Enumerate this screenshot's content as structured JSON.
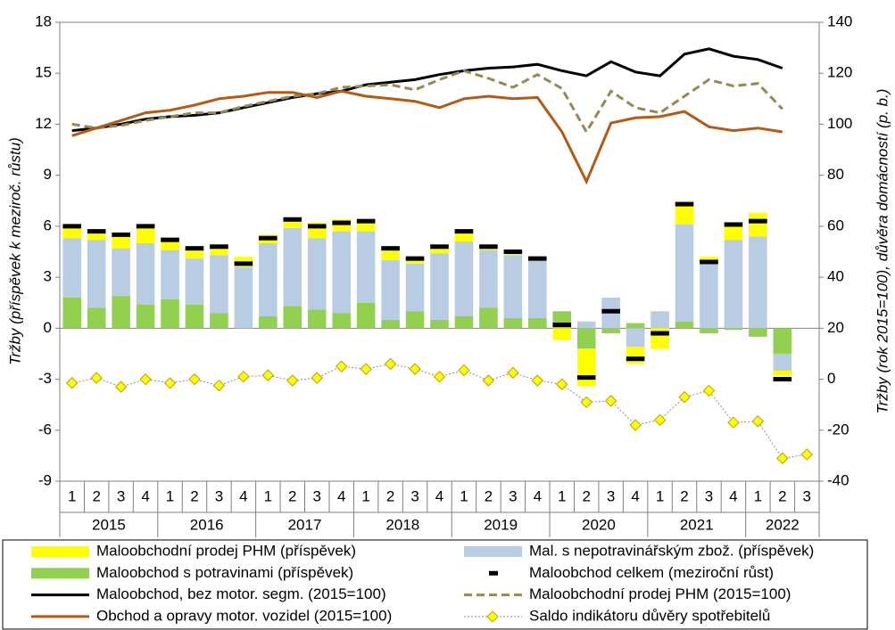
{
  "chart_data": {
    "type": "bar",
    "y_label": "Tržby (příspěvek k meziroč. růstu)",
    "y2_label": "Tržby (rok 2015=100), důvěra domácností (p. b.)",
    "categories": [
      "1",
      "2",
      "3",
      "4",
      "1",
      "2",
      "3",
      "4",
      "1",
      "2",
      "3",
      "4",
      "1",
      "2",
      "3",
      "4",
      "1",
      "2",
      "3",
      "4",
      "1",
      "2",
      "3",
      "4",
      "1",
      "2",
      "3",
      "4",
      "1",
      "2",
      "3"
    ],
    "years": [
      "2015",
      "2016",
      "2017",
      "2018",
      "2019",
      "2020",
      "2021",
      "2022"
    ],
    "ylim": [
      -9,
      18
    ],
    "yticks": [
      -9,
      -6,
      -3,
      0,
      3,
      6,
      9,
      12,
      15,
      18
    ],
    "y2lim": [
      -40,
      140
    ],
    "y2ticks": [
      -40,
      -20,
      0,
      20,
      40,
      60,
      80,
      100,
      120,
      140
    ],
    "series": [
      {
        "name": "Maloobchodní prodej PHM (příspěvek)",
        "kind": "bar",
        "color": "#ffff00",
        "values": [
          0.7,
          0.5,
          0.8,
          1.1,
          0.6,
          0.6,
          0.5,
          0.6,
          0.5,
          0.6,
          0.9,
          0.7,
          0.7,
          0.8,
          0.4,
          0.5,
          0.7,
          0.3,
          0.3,
          0.1,
          -0.7,
          -2.2,
          0,
          -1.0,
          -1.2,
          1.1,
          0.3,
          0.9,
          1.4,
          -0.3,
          null
        ]
      },
      {
        "name": "Mal. s nepotravinářským zbož. (příspěvek)",
        "kind": "bar",
        "color": "#b8cce4",
        "values": [
          3.5,
          4.0,
          2.8,
          3.6,
          2.9,
          2.7,
          3.4,
          3.6,
          4.3,
          4.6,
          4.2,
          4.8,
          4.2,
          3.5,
          2.8,
          3.9,
          4.4,
          3.4,
          3.7,
          3.5,
          0,
          0.4,
          1.8,
          -1.1,
          1.0,
          5.7,
          3.9,
          5.2,
          5.4,
          -1.0,
          null
        ]
      },
      {
        "name": "Maloobchod s potravinami (příspěvek)",
        "kind": "bar",
        "color": "#92d050",
        "values": [
          1.8,
          1.2,
          1.9,
          1.4,
          1.7,
          1.4,
          0.9,
          0,
          0.7,
          1.3,
          1.1,
          0.9,
          1.5,
          0.5,
          1.0,
          0.5,
          0.7,
          1.2,
          0.6,
          0.6,
          1.0,
          -1.2,
          -0.3,
          0.3,
          0,
          0.4,
          -0.3,
          -0.1,
          -0.5,
          -1.5,
          null
        ]
      },
      {
        "name": "Maloobchod celkem (meziroční růst)",
        "kind": "marker",
        "color": "#000000",
        "values": [
          6.0,
          5.7,
          5.5,
          6.0,
          5.2,
          4.7,
          4.8,
          3.8,
          5.3,
          6.4,
          6.0,
          6.2,
          6.3,
          4.7,
          4.1,
          4.8,
          5.7,
          4.8,
          4.5,
          4.1,
          0.2,
          -2.9,
          1.0,
          -1.8,
          -0.3,
          7.3,
          3.9,
          6.1,
          6.3,
          -3.0,
          null
        ]
      },
      {
        "name": "Maloobchod, bez motor. segm. (2015=100)",
        "kind": "line",
        "axis": "y2",
        "color": "#000000",
        "values": [
          97.5,
          98.5,
          100,
          102,
          103,
          103.5,
          104.5,
          106.5,
          108.5,
          110.5,
          112,
          113,
          115.5,
          116.5,
          117.5,
          119.5,
          121,
          122,
          122.5,
          123.5,
          121,
          119,
          124.5,
          120.5,
          119,
          127.5,
          129.6,
          126.7,
          125.4,
          122,
          null
        ]
      },
      {
        "name": "Maloobchodní prodej PHM (2015=100)",
        "kind": "line",
        "axis": "y2",
        "color": "#948a54",
        "dash": true,
        "values": [
          100,
          98.5,
          99.5,
          101.5,
          103,
          104.5,
          104.5,
          107,
          109,
          111,
          112,
          114.5,
          115,
          115.5,
          113.5,
          117.5,
          121,
          118,
          114.5,
          119.5,
          114,
          97,
          113,
          106.5,
          104.5,
          111,
          117.5,
          115,
          116,
          106,
          null
        ]
      },
      {
        "name": "Obchod a opravy motor. vozidel (2015=100)",
        "kind": "line",
        "axis": "y2",
        "color": "#b45a14",
        "values": [
          95.5,
          98.5,
          101.5,
          104.5,
          105.5,
          107.5,
          110,
          111,
          112.5,
          112.5,
          110.5,
          113,
          111,
          110,
          109,
          106.5,
          110,
          111,
          110,
          110.5,
          97,
          77.5,
          100.5,
          102.5,
          103,
          105,
          99,
          97.5,
          98.5,
          97,
          null
        ]
      },
      {
        "name": "Saldo indikátoru důvěry spotřebitelů",
        "kind": "line",
        "axis": "y2",
        "color": "#8c8c8c",
        "marker": "diamond",
        "marker_color": "#ffff00",
        "values": [
          -1.5,
          0.5,
          -3,
          0,
          -1.5,
          0,
          -2.5,
          1,
          1.5,
          -0.5,
          0.5,
          5,
          4,
          6,
          4,
          1,
          3.5,
          -0.5,
          2.5,
          -0.5,
          -2,
          -9,
          -8.5,
          -18,
          -16,
          -7,
          -4.5,
          -17,
          -16.5,
          -31,
          -29.5
        ]
      }
    ]
  }
}
